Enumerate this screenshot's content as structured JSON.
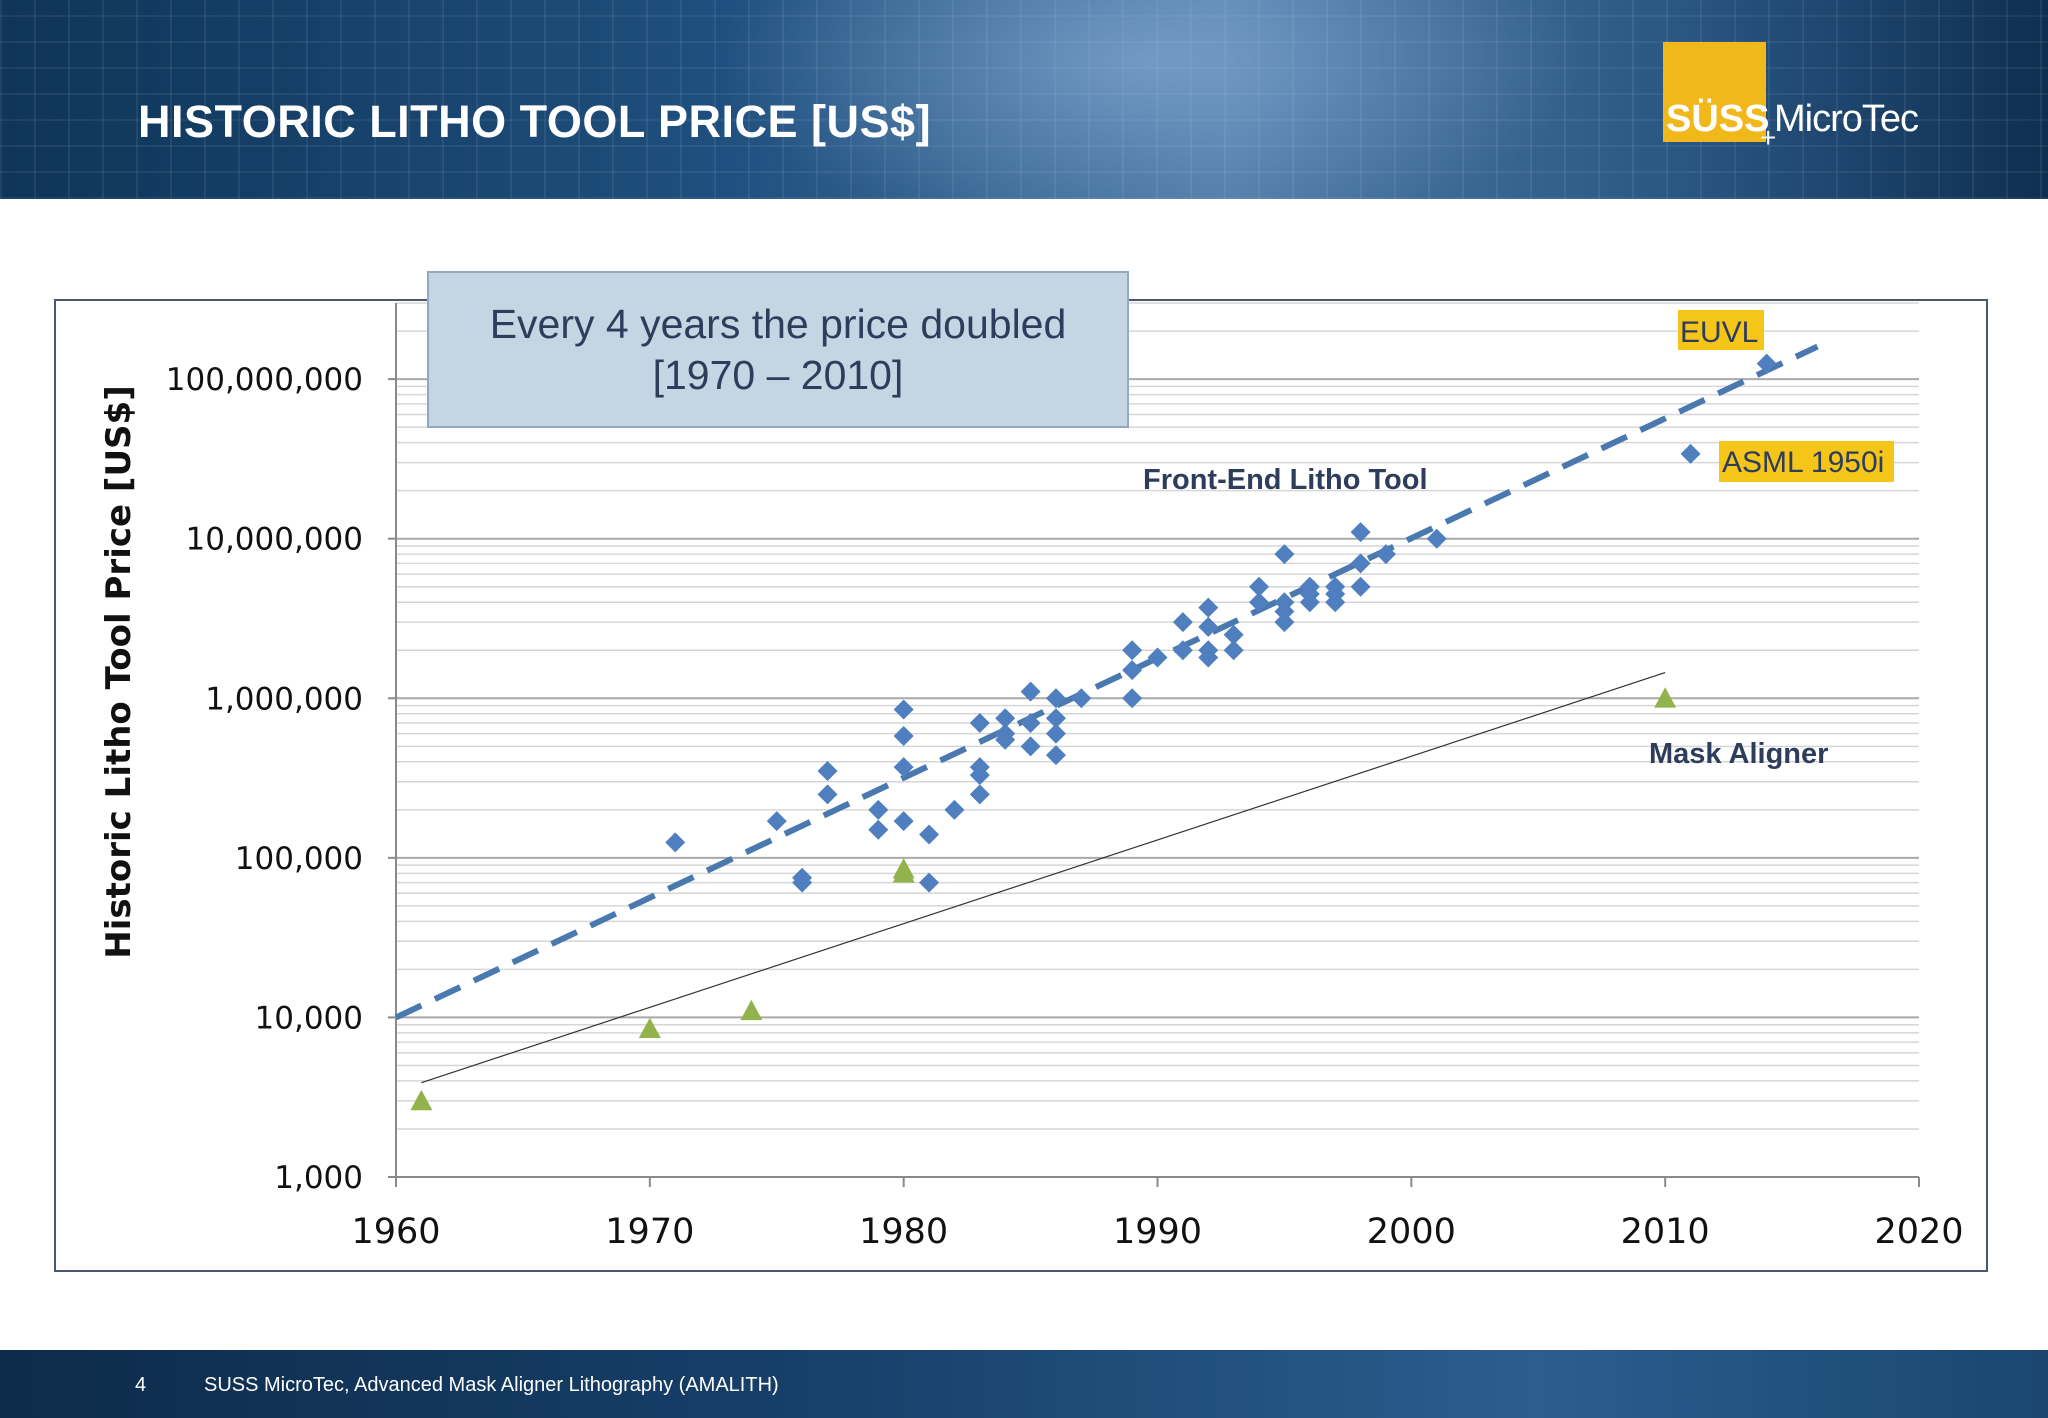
{
  "header": {
    "title": "HISTORIC LITHO TOOL PRICE [US$]",
    "logo_suss": "SÜSS",
    "logo_microtec": "MicroTec"
  },
  "footer": {
    "page_number": "4",
    "text": "SUSS MicroTec, Advanced Mask Aligner Lithography (AMALITH)"
  },
  "colors": {
    "diamond": "#4f7fbe",
    "triangle": "#92b34c",
    "trend_dash": "#4a79b0",
    "label_dark": "#2f3d5c",
    "highlight": "#f5c518",
    "callout_bg": "#c6d5e3"
  },
  "chart_data": {
    "type": "scatter",
    "title": "",
    "xlabel": "",
    "ylabel": "Historic Litho Tool Price [US$]",
    "xlim": [
      1960,
      2020
    ],
    "ylim": [
      1000,
      300000000
    ],
    "yscale": "log",
    "x_ticks": [
      "1960",
      "1970",
      "1980",
      "1990",
      "2000",
      "2010",
      "2020"
    ],
    "y_ticks": [
      "1,000",
      "10,000",
      "100,000",
      "1,000,000",
      "10,000,000",
      "100,000,000"
    ],
    "callout": {
      "line1": "Every 4 years the price doubled",
      "line2": "[1970 – 2010]"
    },
    "annotations": {
      "front_end": "Front-End Litho Tool",
      "mask_aligner": "Mask Aligner",
      "euvl": "EUVL",
      "asml": "ASML 1950i"
    },
    "series": [
      {
        "name": "Front-End Litho Tool",
        "marker": "diamond",
        "points": [
          [
            1971,
            125000
          ],
          [
            1975,
            170000
          ],
          [
            1976,
            75000
          ],
          [
            1976,
            70000
          ],
          [
            1977,
            350000
          ],
          [
            1977,
            250000
          ],
          [
            1979,
            200000
          ],
          [
            1979,
            150000
          ],
          [
            1980,
            850000
          ],
          [
            1980,
            580000
          ],
          [
            1980,
            370000
          ],
          [
            1980,
            170000
          ],
          [
            1981,
            140000
          ],
          [
            1981,
            70000
          ],
          [
            1982,
            200000
          ],
          [
            1983,
            700000
          ],
          [
            1983,
            370000
          ],
          [
            1983,
            330000
          ],
          [
            1983,
            250000
          ],
          [
            1984,
            750000
          ],
          [
            1984,
            600000
          ],
          [
            1984,
            550000
          ],
          [
            1985,
            1100000
          ],
          [
            1985,
            700000
          ],
          [
            1985,
            500000
          ],
          [
            1986,
            1000000
          ],
          [
            1986,
            750000
          ],
          [
            1986,
            600000
          ],
          [
            1986,
            440000
          ],
          [
            1987,
            1000000
          ],
          [
            1989,
            2000000
          ],
          [
            1989,
            1500000
          ],
          [
            1989,
            1000000
          ],
          [
            1990,
            1800000
          ],
          [
            1991,
            3000000
          ],
          [
            1991,
            2000000
          ],
          [
            1992,
            3700000
          ],
          [
            1992,
            2800000
          ],
          [
            1992,
            2000000
          ],
          [
            1992,
            1800000
          ],
          [
            1993,
            2500000
          ],
          [
            1993,
            2000000
          ],
          [
            1994,
            5000000
          ],
          [
            1994,
            4000000
          ],
          [
            1995,
            8000000
          ],
          [
            1995,
            4000000
          ],
          [
            1995,
            3500000
          ],
          [
            1995,
            3000000
          ],
          [
            1996,
            5000000
          ],
          [
            1996,
            4500000
          ],
          [
            1996,
            4000000
          ],
          [
            1997,
            5000000
          ],
          [
            1997,
            4500000
          ],
          [
            1997,
            4000000
          ],
          [
            1998,
            11000000
          ],
          [
            1998,
            7000000
          ],
          [
            1998,
            5000000
          ],
          [
            1999,
            8000000
          ],
          [
            2001,
            10000000
          ],
          [
            2011,
            34000000
          ],
          [
            2014,
            125000000
          ]
        ]
      },
      {
        "name": "Mask Aligner",
        "marker": "triangle",
        "points": [
          [
            1961,
            3000
          ],
          [
            1970,
            8500
          ],
          [
            1974,
            11000
          ],
          [
            1980,
            80000
          ],
          [
            1980,
            85000
          ],
          [
            2010,
            1000000
          ]
        ]
      }
    ],
    "trendlines": [
      {
        "name": "Front-End trend",
        "style": "dashed",
        "from": [
          1960,
          10000
        ],
        "to": [
          2016,
          160000000
        ]
      },
      {
        "name": "Mask Aligner trend",
        "style": "solid",
        "from": [
          1961,
          3900
        ],
        "to": [
          2010,
          1450000
        ]
      }
    ]
  }
}
